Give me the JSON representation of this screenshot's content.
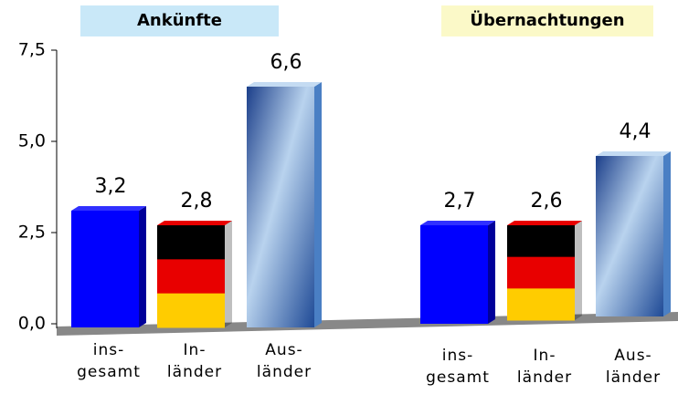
{
  "chart_data": {
    "type": "bar",
    "categories": [
      "ins-\ngesamt",
      "In-\nländer",
      "Aus-\nländer"
    ],
    "groups": [
      {
        "name": "Ankünfte",
        "color": "#c9e8f8",
        "values": [
          3.2,
          2.8,
          6.6
        ],
        "value_labels": [
          "3,2",
          "2,8",
          "6,6"
        ]
      },
      {
        "name": "Übernachtungen",
        "color": "#fbf9c8",
        "values": [
          2.7,
          2.6,
          4.4
        ],
        "value_labels": [
          "2,7",
          "2,6",
          "4,4"
        ]
      }
    ],
    "colors": [
      "#0000ff",
      "#e80000",
      "#4a7fc4"
    ],
    "ylim": [
      0,
      7.5
    ],
    "yticks": [
      {
        "value": 0,
        "label": "0,0"
      },
      {
        "value": 2.5,
        "label": "2,5"
      },
      {
        "value": 5,
        "label": "5,0"
      },
      {
        "value": 7.5,
        "label": "7,5"
      }
    ]
  }
}
